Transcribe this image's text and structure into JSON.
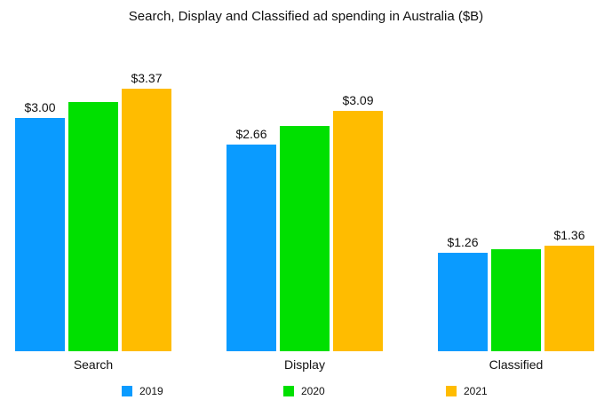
{
  "chart_data": {
    "type": "bar",
    "title": "Search, Display and Classified ad spending in Australia ($B)",
    "categories": [
      "Search",
      "Display",
      "Classified"
    ],
    "series": [
      {
        "name": "2019",
        "color": "#0a9bff",
        "values": [
          3.0,
          2.66,
          1.26
        ],
        "labels": [
          "$3.00",
          "$2.66",
          "$1.26"
        ]
      },
      {
        "name": "2020",
        "color": "#00e000",
        "values": [
          3.2,
          2.9,
          1.31
        ],
        "labels": [
          "",
          "",
          ""
        ]
      },
      {
        "name": "2021",
        "color": "#ffbc00",
        "values": [
          3.37,
          3.09,
          1.36
        ],
        "labels": [
          "$3.37",
          "$3.09",
          "$1.36"
        ]
      }
    ],
    "xlabel": "",
    "ylabel": "",
    "ylim": [
      0,
      4.5
    ],
    "grid": false,
    "legend_position": "bottom"
  }
}
